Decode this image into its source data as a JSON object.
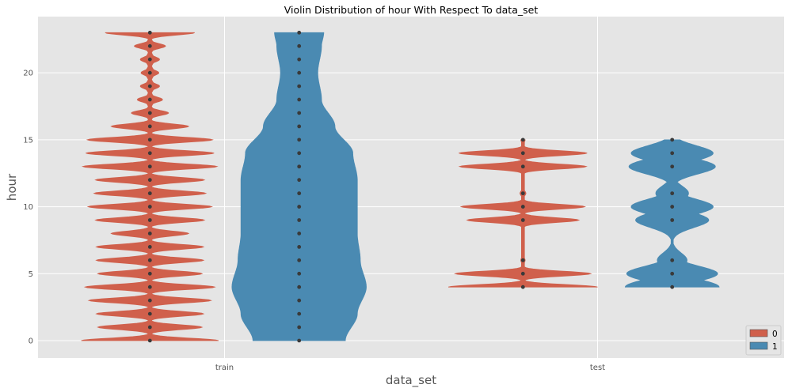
{
  "chart_data": {
    "type": "violin",
    "title": "Violin Distribution of hour With Respect To data_set",
    "xlabel": "data_set",
    "ylabel": "hour",
    "categories": [
      "train",
      "test"
    ],
    "ylim": [
      -1.3,
      24.2
    ],
    "yticks": [
      0,
      5,
      10,
      15,
      20
    ],
    "grid": true,
    "legend": {
      "placement": "bottom-right",
      "entries": [
        "0",
        "1"
      ]
    },
    "colors": {
      "0": "#d0604c",
      "1": "#4a8ab2",
      "background": "#e5e5e5",
      "grid": "#ffffff",
      "points": "#3a3a3a"
    },
    "series": [
      {
        "name": "0",
        "violins": [
          {
            "category": "train",
            "hours": [
              0,
              1,
              2,
              3,
              4,
              5,
              6,
              7,
              8,
              9,
              10,
              11,
              12,
              13,
              14,
              15,
              16,
              17,
              18,
              19,
              20,
              21,
              22,
              23
            ],
            "density": [
              0.92,
              0.7,
              0.72,
              0.82,
              0.87,
              0.7,
              0.72,
              0.72,
              0.52,
              0.73,
              0.83,
              0.75,
              0.73,
              0.9,
              0.86,
              0.84,
              0.52,
              0.25,
              0.17,
              0.13,
              0.12,
              0.13,
              0.21,
              0.6
            ]
          },
          {
            "category": "test",
            "hours": [
              4,
              5,
              6,
              9,
              10,
              11,
              13,
              14,
              15
            ],
            "density": [
              1.0,
              0.91,
              0.03,
              0.75,
              0.83,
              0.04,
              0.85,
              0.86,
              0.03
            ]
          }
        ]
      },
      {
        "name": "1",
        "violins": [
          {
            "category": "train",
            "hours": [
              0,
              2,
              4,
              6,
              8,
              10,
              12,
              14,
              16,
              18,
              20,
              22,
              23
            ],
            "density": [
              0.62,
              0.78,
              0.9,
              0.82,
              0.78,
              0.78,
              0.78,
              0.72,
              0.48,
              0.3,
              0.25,
              0.3,
              0.33
            ]
          },
          {
            "category": "test",
            "hours": [
              4,
              5,
              6,
              9,
              10,
              11,
              13,
              14,
              15
            ],
            "density": [
              0.63,
              0.61,
              0.2,
              0.49,
              0.55,
              0.22,
              0.58,
              0.55,
              0.06
            ]
          }
        ]
      }
    ]
  }
}
